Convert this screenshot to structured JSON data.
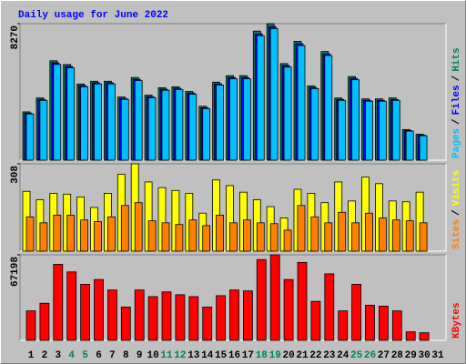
{
  "title": "Daily usage for June 2022",
  "legend_separator": "/",
  "chart_data": [
    {
      "type": "bar",
      "ylim": [
        0,
        8270
      ],
      "yticks": [
        8270
      ],
      "series": [
        {
          "name": "Hits",
          "color": "#00805c",
          "values": [
            2925,
            3769,
            6020,
            5795,
            4613,
            4782,
            4782,
            3826,
            5007,
            3938,
            4388,
            4445,
            4163,
            3263,
            4726,
            5120,
            5120,
            7820,
            8270,
            5851,
            7201,
            4501,
            6582,
            3769,
            5063,
            3713,
            3713,
            3769,
            1856,
            1575,
            null
          ]
        },
        {
          "name": "Files",
          "color": "#0000ff",
          "values": [
            2850,
            3680,
            5900,
            5680,
            4520,
            4690,
            4690,
            3740,
            4900,
            3850,
            4300,
            4350,
            4070,
            3180,
            4620,
            5010,
            5010,
            7650,
            8090,
            5730,
            7050,
            4400,
            6440,
            3680,
            4950,
            3630,
            3630,
            3680,
            1800,
            1520,
            null
          ]
        },
        {
          "name": "Pages",
          "color": "#00c0ff",
          "values": [
            2800,
            3620,
            5800,
            5590,
            4450,
            4620,
            4620,
            3680,
            4820,
            3780,
            4230,
            4280,
            4000,
            3120,
            4550,
            4930,
            4930,
            7540,
            7970,
            5640,
            6940,
            4330,
            6340,
            3620,
            4870,
            3570,
            3570,
            3620,
            1760,
            1480,
            null
          ]
        }
      ]
    },
    {
      "type": "bar",
      "ylim": [
        0,
        308
      ],
      "yticks": [
        308
      ],
      "series": [
        {
          "name": "Visits",
          "color": "#ffff00",
          "values": [
            211,
            181,
            204,
            201,
            191,
            154,
            204,
            271,
            308,
            244,
            224,
            214,
            204,
            134,
            251,
            231,
            208,
            181,
            157,
            117,
            218,
            204,
            171,
            244,
            177,
            261,
            238,
            177,
            174,
            208,
            null
          ]
        },
        {
          "name": "Sites",
          "color": "#ff8000",
          "values": [
            121,
            100,
            127,
            127,
            110,
            104,
            121,
            161,
            171,
            107,
            100,
            94,
            110,
            90,
            127,
            100,
            110,
            100,
            97,
            74,
            161,
            121,
            100,
            137,
            100,
            134,
            117,
            110,
            107,
            100,
            null
          ]
        }
      ]
    },
    {
      "type": "bar",
      "ylim": [
        0,
        67198
      ],
      "yticks": [
        67198
      ],
      "categories": [
        "1",
        "2",
        "3",
        "4",
        "5",
        "6",
        "7",
        "8",
        "9",
        "10",
        "11",
        "12",
        "13",
        "14",
        "15",
        "16",
        "17",
        "18",
        "19",
        "20",
        "21",
        "22",
        "23",
        "24",
        "25",
        "26",
        "27",
        "28",
        "29",
        "30",
        "31"
      ],
      "label_colors": [
        "#000000",
        "#000000",
        "#000000",
        "#00805c",
        "#00805c",
        "#000000",
        "#000000",
        "#000000",
        "#000000",
        "#000000",
        "#00805c",
        "#00805c",
        "#000000",
        "#000000",
        "#000000",
        "#000000",
        "#000000",
        "#00805c",
        "#00805c",
        "#000000",
        "#000000",
        "#000000",
        "#000000",
        "#000000",
        "#00805c",
        "#00805c",
        "#000000",
        "#000000",
        "#000000",
        "#000000",
        "#000000"
      ],
      "series": [
        {
          "name": "KBytes",
          "color": "#ff0000",
          "values": [
            23146,
            29118,
            59732,
            53758,
            44051,
            47785,
            39572,
            26132,
            39572,
            34345,
            38079,
            35839,
            34345,
            26132,
            35092,
            39572,
            38825,
            63465,
            67198,
            47785,
            61225,
            30612,
            52265,
            23146,
            44051,
            27626,
            26879,
            23146,
            6720,
            5973,
            null
          ]
        }
      ]
    }
  ]
}
